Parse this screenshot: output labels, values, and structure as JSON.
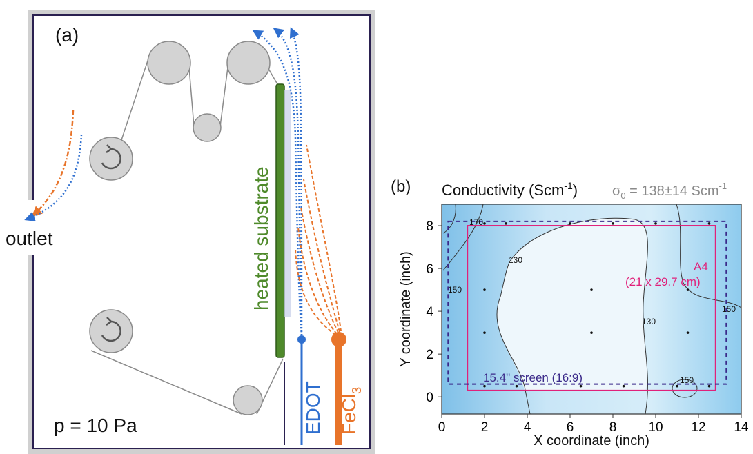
{
  "panel_a": {
    "label": "(a)",
    "outlet": "outlet",
    "substrate": "heated substrate",
    "pressure": "p = 10 Pa",
    "edot": "EDOT",
    "fecl3_main": "FeCl",
    "fecl3_sub": "3"
  },
  "panel_b": {
    "label": "(b)",
    "title_main": "Conductivity (Scm",
    "title_sup": "-1",
    "title_close": ")",
    "sigma_main": "σ",
    "sigma_sub": "0",
    "sigma_value": " = 138±14 Scm",
    "sigma_sup": "-1",
    "a4_line1": "A4",
    "a4_line2": "(21 x 29.7 cm)",
    "screen_label": "15.4\" screen (16:9)",
    "contour_labels": [
      "170",
      "130",
      "150",
      "130",
      "150",
      "150"
    ]
  },
  "chart_data": {
    "type": "contour",
    "xlabel": "X coordinate (inch)",
    "ylabel": "Y coordinate (inch)",
    "xlim": [
      0,
      14
    ],
    "ylim": [
      -0.8,
      9
    ],
    "x_ticks": [
      0,
      2,
      4,
      6,
      8,
      10,
      12,
      14
    ],
    "y_ticks": [
      0,
      2,
      4,
      6,
      8
    ],
    "contour_levels": [
      130,
      150,
      170
    ],
    "measurement_points": [
      [
        2,
        8.1
      ],
      [
        3,
        8.1
      ],
      [
        6,
        8.1
      ],
      [
        8,
        8.1
      ],
      [
        10,
        8.1
      ],
      [
        12.5,
        8.1
      ],
      [
        2,
        5
      ],
      [
        7,
        5
      ],
      [
        11.5,
        5
      ],
      [
        2,
        3
      ],
      [
        7,
        3
      ],
      [
        11.5,
        3
      ],
      [
        2,
        0.5
      ],
      [
        3.5,
        0.5
      ],
      [
        6.5,
        0.5
      ],
      [
        8.5,
        0.5
      ],
      [
        11,
        0.5
      ],
      [
        12.5,
        0.5
      ]
    ],
    "rectangles": [
      {
        "name": "A4",
        "x": [
          1.2,
          12.8
        ],
        "y": [
          0.3,
          8.0
        ],
        "color": "#e0217a",
        "style": "solid"
      },
      {
        "name": "15.4\" screen (16:9)",
        "x": [
          0.3,
          13.3
        ],
        "y": [
          0.6,
          8.2
        ],
        "color": "#3b2a8a",
        "style": "dashed"
      }
    ]
  },
  "colors": {
    "edot": "#2f6fcf",
    "fecl3": "#e8742a",
    "substrate": "#4f8a2b",
    "roller": "#d3d3d3",
    "a4": "#e0217a",
    "screen": "#3b2a8a"
  }
}
